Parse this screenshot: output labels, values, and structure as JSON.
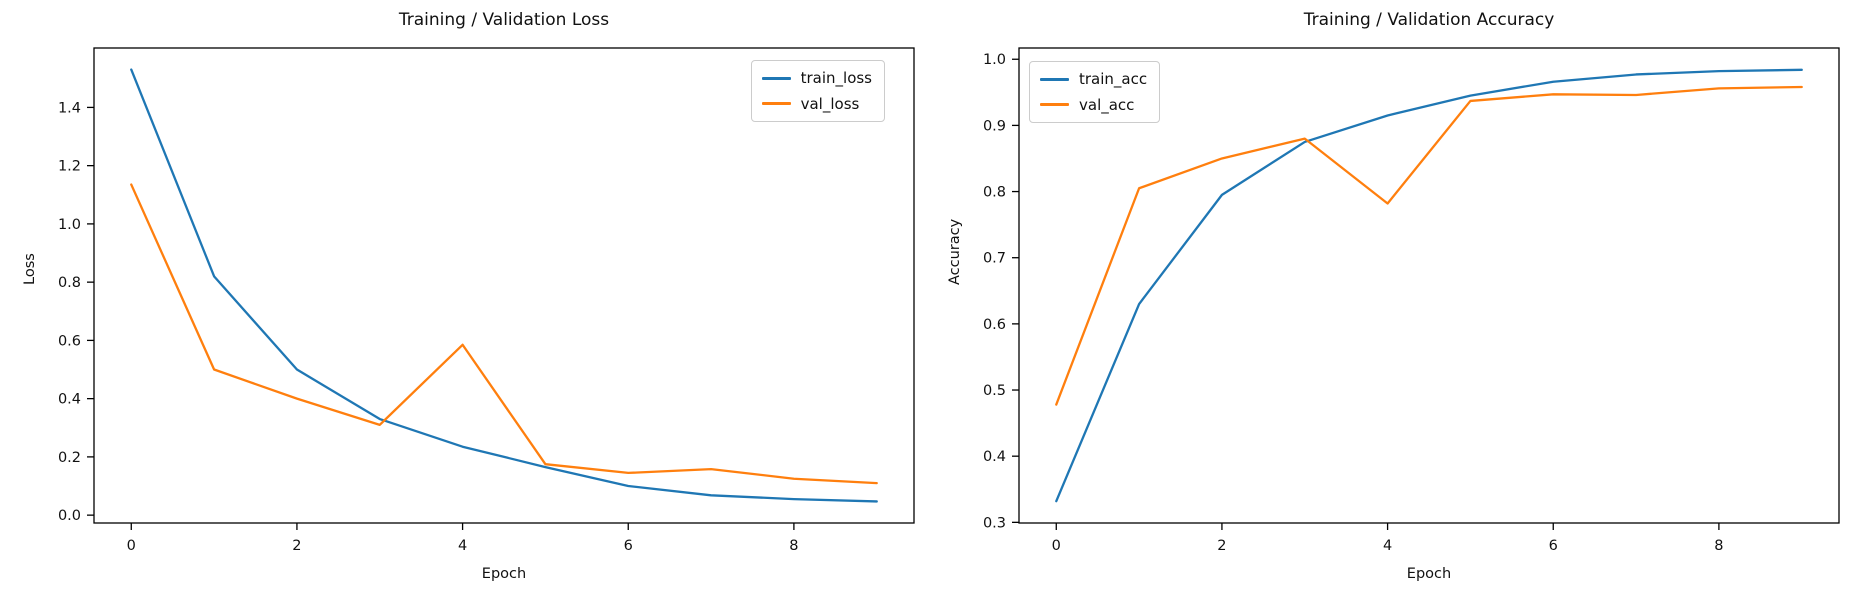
{
  "figure": {
    "background": "#ffffff",
    "axis_color": "#000000",
    "text_color": "#111111"
  },
  "chart_data": [
    {
      "type": "line",
      "title": "Training / Validation Loss",
      "xlabel": "Epoch",
      "ylabel": "Loss",
      "x": [
        0,
        1,
        2,
        3,
        4,
        5,
        6,
        7,
        8,
        9
      ],
      "series": [
        {
          "name": "train_loss",
          "color": "#1f77b4",
          "values": [
            1.53,
            0.82,
            0.5,
            0.33,
            0.235,
            0.165,
            0.1,
            0.068,
            0.055,
            0.047
          ]
        },
        {
          "name": "val_loss",
          "color": "#ff7f0e",
          "values": [
            1.135,
            0.5,
            0.4,
            0.31,
            0.585,
            0.175,
            0.145,
            0.158,
            0.125,
            0.11
          ]
        }
      ],
      "xlim": [
        -0.45,
        9.45
      ],
      "ylim": [
        -0.027,
        1.604
      ],
      "xticks": [
        "0",
        "2",
        "4",
        "6",
        "8"
      ],
      "xtick_values": [
        0,
        2,
        4,
        6,
        8
      ],
      "yticks": [
        "0.0",
        "0.2",
        "0.4",
        "0.6",
        "0.8",
        "1.0",
        "1.2",
        "1.4"
      ],
      "ytick_values": [
        0.0,
        0.2,
        0.4,
        0.6,
        0.8,
        1.0,
        1.2,
        1.4
      ],
      "grid": false,
      "legend_position": "top-right"
    },
    {
      "type": "line",
      "title": "Training / Validation Accuracy",
      "xlabel": "Epoch",
      "ylabel": "Accuracy",
      "x": [
        0,
        1,
        2,
        3,
        4,
        5,
        6,
        7,
        8,
        9
      ],
      "series": [
        {
          "name": "train_acc",
          "color": "#1f77b4",
          "values": [
            0.332,
            0.63,
            0.795,
            0.875,
            0.915,
            0.945,
            0.966,
            0.977,
            0.982,
            0.984
          ]
        },
        {
          "name": "val_acc",
          "color": "#ff7f0e",
          "values": [
            0.478,
            0.805,
            0.85,
            0.88,
            0.782,
            0.937,
            0.947,
            0.946,
            0.956,
            0.958
          ]
        }
      ],
      "xlim": [
        -0.45,
        9.45
      ],
      "ylim": [
        0.299,
        1.017
      ],
      "xticks": [
        "0",
        "2",
        "4",
        "6",
        "8"
      ],
      "xtick_values": [
        0,
        2,
        4,
        6,
        8
      ],
      "yticks": [
        "0.3",
        "0.4",
        "0.5",
        "0.6",
        "0.7",
        "0.8",
        "0.9",
        "1.0"
      ],
      "ytick_values": [
        0.3,
        0.4,
        0.5,
        0.6,
        0.7,
        0.8,
        0.9,
        1.0
      ],
      "grid": false,
      "legend_position": "top-left"
    }
  ]
}
